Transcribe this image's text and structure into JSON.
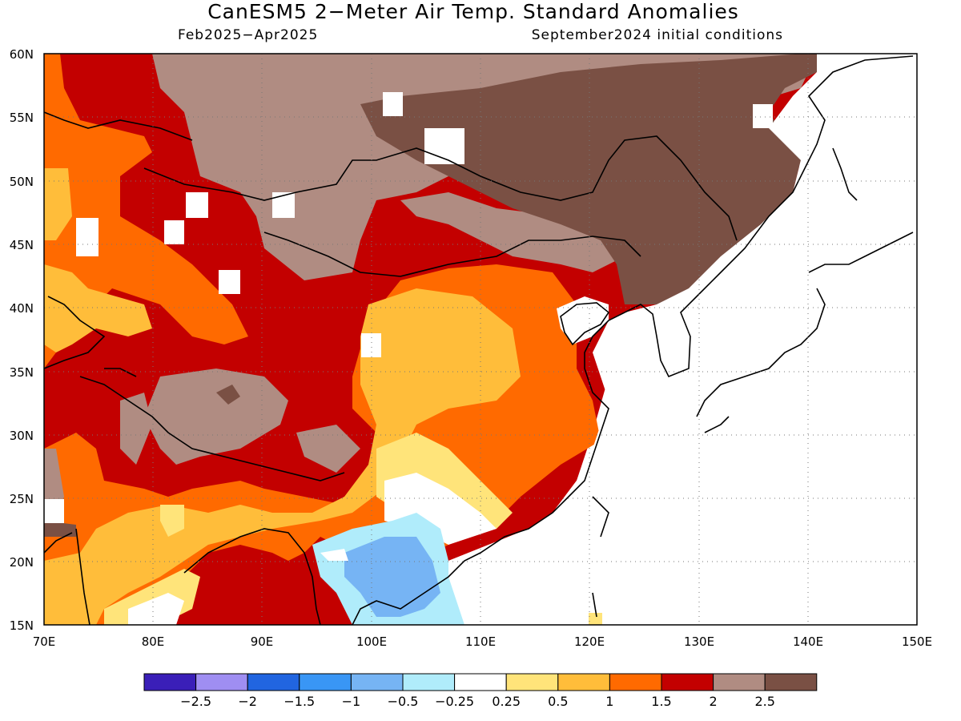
{
  "header": {
    "title": "CanESM5 2−Meter Air Temp. Standard Anomalies",
    "period": "Feb2025−Apr2025",
    "initial_conditions": "September2024 initial conditions"
  },
  "map": {
    "lat_labels": [
      "60N",
      "55N",
      "50N",
      "45N",
      "40N",
      "35N",
      "30N",
      "25N",
      "20N",
      "15N"
    ],
    "lon_labels": [
      "70E",
      "80E",
      "90E",
      "100E",
      "110E",
      "120E",
      "130E",
      "140E",
      "150E"
    ],
    "grid": "dotted",
    "region": "East and South Asia"
  },
  "colorbar": {
    "colors": [
      "#3a1fb8",
      "#9f8ef2",
      "#2165e0",
      "#3996f5",
      "#76b4f4",
      "#b0ecfb",
      "#ffffff",
      "#ffe47a",
      "#ffbd3a",
      "#ff6a00",
      "#c30000",
      "#b08c82",
      "#7a5044"
    ],
    "labels": [
      "−2.5",
      "−2",
      "−1.5",
      "−1",
      "−0.5",
      "−0.25",
      "0.25",
      "0.5",
      "1",
      "1.5",
      "2",
      "2.5"
    ]
  },
  "colors": {
    "strong_warm": "#c30000",
    "warm": "#ff6a00",
    "mild_warm": "#ffbd3a",
    "slight_warm": "#ffe47a",
    "very_warm": "#b08c82",
    "extreme_warm": "#7a5044",
    "cool": "#76b4f4",
    "slight_cool": "#b0ecfb"
  }
}
